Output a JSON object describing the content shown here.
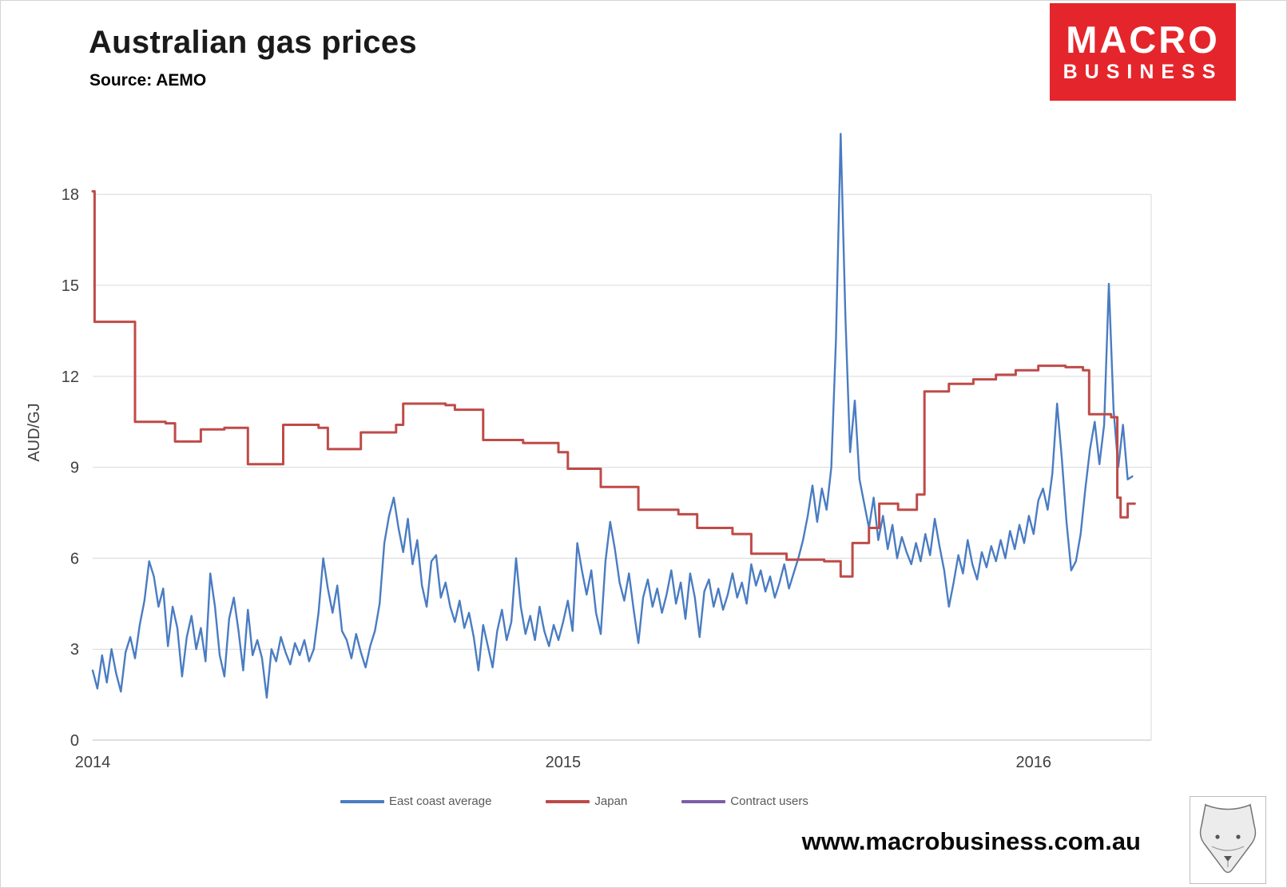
{
  "header": {
    "title": "Australian gas prices",
    "source": "Source: AEMO"
  },
  "logo": {
    "line1": "MACRO",
    "line2": "BUSINESS",
    "bg_color": "#E5252C",
    "text_color": "#FFFFFF"
  },
  "footer": {
    "url": "www.macrobusiness.com.au"
  },
  "chart_data": {
    "type": "line",
    "title": "Australian gas prices",
    "subtitle": "Source: AEMO",
    "xlabel": "",
    "ylabel": "AUD/GJ",
    "xlim": [
      2014.0,
      2016.25
    ],
    "ylim": [
      0,
      20.3
    ],
    "yticks": [
      0,
      3,
      6,
      9,
      12,
      15,
      18
    ],
    "xticks": [
      2014,
      2015,
      2016
    ],
    "grid": true,
    "legend_position": "bottom",
    "series": [
      {
        "name": "East coast average",
        "color": "#4A7CC2",
        "width": 2.4,
        "x_start": 2014.0,
        "x_step": 0.01,
        "values": [
          2.3,
          1.7,
          2.8,
          1.9,
          3.0,
          2.2,
          1.6,
          2.9,
          3.4,
          2.7,
          3.8,
          4.6,
          5.9,
          5.4,
          4.4,
          5.0,
          3.1,
          4.4,
          3.7,
          2.1,
          3.4,
          4.1,
          3.0,
          3.7,
          2.6,
          5.5,
          4.4,
          2.8,
          2.1,
          4.0,
          4.7,
          3.6,
          2.3,
          4.3,
          2.8,
          3.3,
          2.7,
          1.4,
          3.0,
          2.6,
          3.4,
          2.9,
          2.5,
          3.2,
          2.8,
          3.3,
          2.6,
          3.0,
          4.2,
          6.0,
          5.0,
          4.2,
          5.1,
          3.6,
          3.3,
          2.7,
          3.5,
          2.9,
          2.4,
          3.1,
          3.6,
          4.5,
          6.5,
          7.4,
          8.0,
          7.0,
          6.2,
          7.3,
          5.8,
          6.6,
          5.1,
          4.4,
          5.9,
          6.1,
          4.7,
          5.2,
          4.4,
          3.9,
          4.6,
          3.7,
          4.2,
          3.4,
          2.3,
          3.8,
          3.1,
          2.4,
          3.6,
          4.3,
          3.3,
          3.9,
          6.0,
          4.4,
          3.5,
          4.1,
          3.3,
          4.4,
          3.6,
          3.1,
          3.8,
          3.3,
          3.9,
          4.6,
          3.6,
          6.5,
          5.6,
          4.8,
          5.6,
          4.2,
          3.5,
          5.9,
          7.2,
          6.3,
          5.2,
          4.6,
          5.5,
          4.3,
          3.2,
          4.7,
          5.3,
          4.4,
          5.0,
          4.2,
          4.8,
          5.6,
          4.5,
          5.2,
          4.0,
          5.5,
          4.7,
          3.4,
          4.9,
          5.3,
          4.4,
          5.0,
          4.3,
          4.8,
          5.5,
          4.7,
          5.2,
          4.5,
          5.8,
          5.1,
          5.6,
          4.9,
          5.4,
          4.7,
          5.2,
          5.8,
          5.0,
          5.5,
          6.0,
          6.6,
          7.4,
          8.4,
          7.2,
          8.3,
          7.6,
          9.0,
          13.2,
          20.0,
          14.0,
          9.5,
          11.2,
          8.6,
          7.8,
          7.0,
          8.0,
          6.6,
          7.4,
          6.3,
          7.1,
          6.0,
          6.7,
          6.2,
          5.8,
          6.5,
          5.9,
          6.8,
          6.1,
          7.3,
          6.4,
          5.6,
          4.4,
          5.2,
          6.1,
          5.5,
          6.6,
          5.8,
          5.3,
          6.2,
          5.7,
          6.4,
          5.9,
          6.6,
          6.0,
          6.9,
          6.3,
          7.1,
          6.5,
          7.4,
          6.8,
          7.9,
          8.3,
          7.6,
          8.8,
          11.1,
          9.3,
          7.2,
          5.6,
          5.9,
          6.8,
          8.3,
          9.6,
          10.5,
          9.1,
          10.4,
          15.05,
          10.9,
          9.0,
          10.4,
          8.6,
          8.7
        ]
      },
      {
        "name": "Japan",
        "color": "#BE4B48",
        "width": 3,
        "step": true,
        "points": [
          [
            2014.0,
            18.1
          ],
          [
            2014.004,
            18.1
          ],
          [
            2014.004,
            13.8
          ],
          [
            2014.09,
            13.8
          ],
          [
            2014.09,
            10.5
          ],
          [
            2014.155,
            10.5
          ],
          [
            2014.155,
            10.45
          ],
          [
            2014.175,
            10.45
          ],
          [
            2014.175,
            9.85
          ],
          [
            2014.23,
            9.85
          ],
          [
            2014.23,
            10.25
          ],
          [
            2014.28,
            10.25
          ],
          [
            2014.28,
            10.3
          ],
          [
            2014.33,
            10.3
          ],
          [
            2014.33,
            9.1
          ],
          [
            2014.405,
            9.1
          ],
          [
            2014.405,
            10.4
          ],
          [
            2014.48,
            10.4
          ],
          [
            2014.48,
            10.3
          ],
          [
            2014.5,
            10.3
          ],
          [
            2014.5,
            9.6
          ],
          [
            2014.57,
            9.6
          ],
          [
            2014.57,
            10.15
          ],
          [
            2014.645,
            10.15
          ],
          [
            2014.645,
            10.4
          ],
          [
            2014.66,
            10.4
          ],
          [
            2014.66,
            11.1
          ],
          [
            2014.75,
            11.1
          ],
          [
            2014.75,
            11.05
          ],
          [
            2014.77,
            11.05
          ],
          [
            2014.77,
            10.9
          ],
          [
            2014.83,
            10.9
          ],
          [
            2014.83,
            9.9
          ],
          [
            2014.915,
            9.9
          ],
          [
            2014.915,
            9.8
          ],
          [
            2014.99,
            9.8
          ],
          [
            2014.99,
            9.5
          ],
          [
            2015.01,
            9.5
          ],
          [
            2015.01,
            8.95
          ],
          [
            2015.08,
            8.95
          ],
          [
            2015.08,
            8.35
          ],
          [
            2015.16,
            8.35
          ],
          [
            2015.16,
            7.6
          ],
          [
            2015.245,
            7.6
          ],
          [
            2015.245,
            7.45
          ],
          [
            2015.285,
            7.45
          ],
          [
            2015.285,
            7.0
          ],
          [
            2015.36,
            7.0
          ],
          [
            2015.36,
            6.8
          ],
          [
            2015.4,
            6.8
          ],
          [
            2015.4,
            6.15
          ],
          [
            2015.475,
            6.15
          ],
          [
            2015.475,
            5.95
          ],
          [
            2015.555,
            5.95
          ],
          [
            2015.555,
            5.9
          ],
          [
            2015.59,
            5.9
          ],
          [
            2015.59,
            5.4
          ],
          [
            2015.615,
            5.4
          ],
          [
            2015.615,
            6.5
          ],
          [
            2015.65,
            6.5
          ],
          [
            2015.65,
            7.0
          ],
          [
            2015.672,
            7.0
          ],
          [
            2015.672,
            7.8
          ],
          [
            2015.712,
            7.8
          ],
          [
            2015.712,
            7.6
          ],
          [
            2015.752,
            7.6
          ],
          [
            2015.752,
            8.1
          ],
          [
            2015.768,
            8.1
          ],
          [
            2015.768,
            11.5
          ],
          [
            2015.82,
            11.5
          ],
          [
            2015.82,
            11.75
          ],
          [
            2015.872,
            11.75
          ],
          [
            2015.872,
            11.9
          ],
          [
            2015.92,
            11.9
          ],
          [
            2015.92,
            12.05
          ],
          [
            2015.962,
            12.05
          ],
          [
            2015.962,
            12.2
          ],
          [
            2016.01,
            12.2
          ],
          [
            2016.01,
            12.35
          ],
          [
            2016.068,
            12.35
          ],
          [
            2016.068,
            12.3
          ],
          [
            2016.105,
            12.3
          ],
          [
            2016.105,
            12.2
          ],
          [
            2016.118,
            12.2
          ],
          [
            2016.118,
            10.75
          ],
          [
            2016.165,
            10.75
          ],
          [
            2016.165,
            10.65
          ],
          [
            2016.178,
            10.65
          ],
          [
            2016.178,
            8.0
          ],
          [
            2016.185,
            8.0
          ],
          [
            2016.185,
            7.35
          ],
          [
            2016.2,
            7.35
          ],
          [
            2016.2,
            7.8
          ],
          [
            2016.215,
            7.8
          ]
        ]
      },
      {
        "name": "Contract users",
        "color": "#7B5EA7",
        "width": 3,
        "points": []
      }
    ]
  }
}
